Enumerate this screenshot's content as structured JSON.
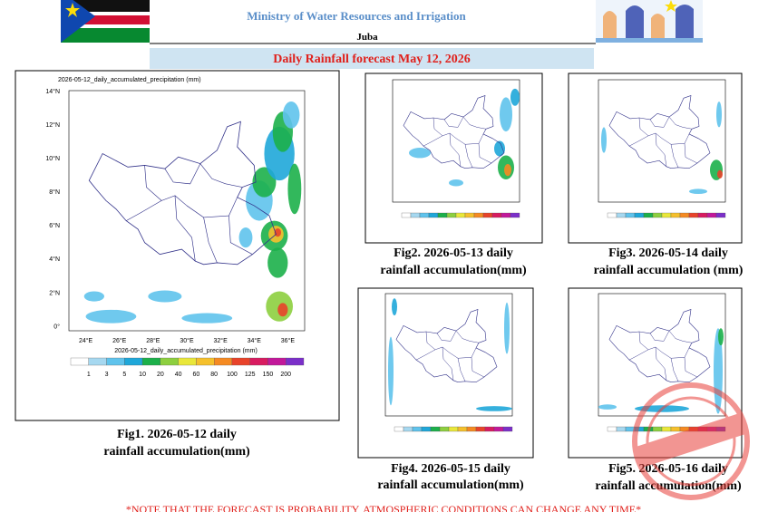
{
  "header": {
    "ministry": "Ministry of Water Resources and Irrigation",
    "city": "Juba",
    "banner": "Daily Rainfall forecast May 12, 2026"
  },
  "main_map": {
    "title": "2026-05-12_daily_accumulated_precipitation  (mm)",
    "yticks": [
      "14°N",
      "12°N",
      "10°N",
      "8°N",
      "6°N",
      "4°N",
      "2°N",
      "0°"
    ],
    "xticks": [
      "24°E",
      "26°E",
      "28°E",
      "30°E",
      "32°E",
      "34°E",
      "36°E"
    ],
    "colorbar_title": "2026-05-12_daily_accumulated_precipitation  (mm)",
    "colorbar_labels": [
      "1",
      "3",
      "5",
      "10",
      "20",
      "40",
      "60",
      "80",
      "100",
      "125",
      "150",
      "200"
    ]
  },
  "figures": [
    {
      "caption_line1": "Fig1. 2026-05-12 daily",
      "caption_line2": "rainfall accumulation(mm)"
    },
    {
      "caption_line1": "Fig2. 2026-05-13 daily",
      "caption_line2": "rainfall accumulation(mm)"
    },
    {
      "caption_line1": "Fig3. 2026-05-14 daily",
      "caption_line2": "rainfall accumulation (mm)"
    },
    {
      "caption_line1": "Fig4. 2026-05-15 daily",
      "caption_line2": "rainfall accumulation(mm)"
    },
    {
      "caption_line1": "Fig5. 2026-05-16 daily",
      "caption_line2": "rainfall accumulation(mm)"
    }
  ],
  "note": "*NOTE THAT THE FORECAST IS PROBABILITY, ATMOSPHERIC CONDITIONS CAN CHANGE ANY TIME*"
}
